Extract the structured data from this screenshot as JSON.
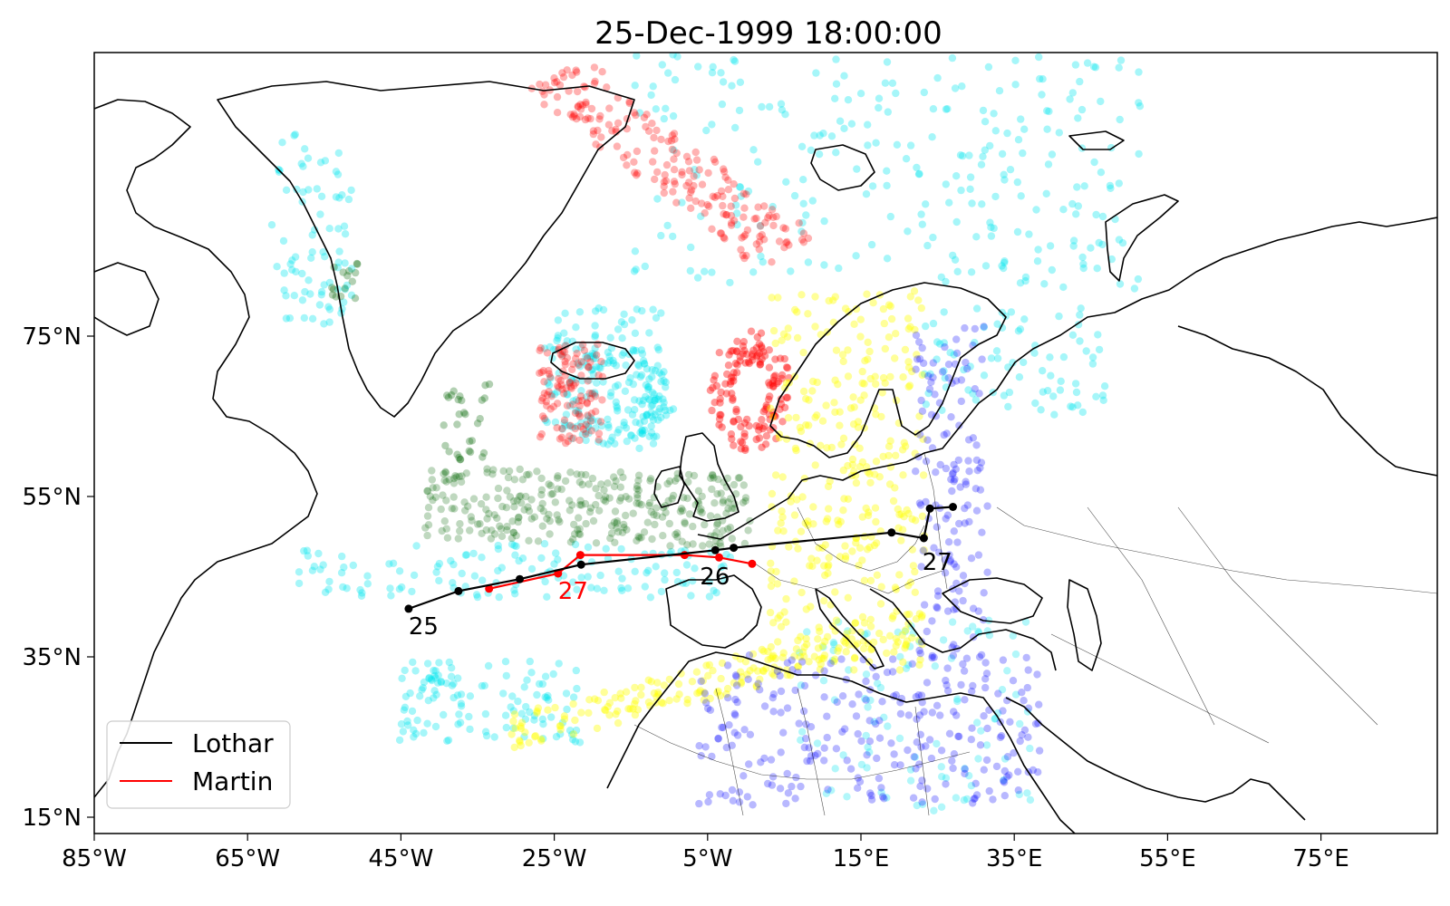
{
  "title": "25-Dec-1999 18:00:00",
  "axes": {
    "x_ticks": [
      "85°W",
      "65°W",
      "45°W",
      "25°W",
      "5°W",
      "15°E",
      "35°E",
      "55°E",
      "75°E"
    ],
    "y_ticks": [
      "75°N",
      "55°N",
      "35°N",
      "15°N"
    ]
  },
  "legend": {
    "placement": "lower-left",
    "items": [
      {
        "label": "Lothar",
        "color": "#000000"
      },
      {
        "label": "Martin",
        "color": "#ff0000"
      }
    ]
  },
  "tracks": {
    "lothar": {
      "color": "#000000",
      "points": [
        [
          -44,
          41
        ],
        [
          -37.5,
          43.2
        ],
        [
          -29.5,
          44.7
        ],
        [
          -21.5,
          46.5
        ],
        [
          -4,
          48.3
        ],
        [
          -1.6,
          48.6
        ],
        [
          19,
          50.5
        ],
        [
          23.2,
          49.8
        ],
        [
          24,
          53.5
        ],
        [
          27,
          53.7
        ]
      ],
      "labels": [
        {
          "text": "25",
          "lon": -44,
          "lat": 41
        },
        {
          "text": "26",
          "lon": -6,
          "lat": 47.2
        },
        {
          "text": "27",
          "lon": 23,
          "lat": 49
        }
      ]
    },
    "martin": {
      "color": "#ff0000",
      "points": [
        [
          -33.5,
          43.5
        ],
        [
          -24.5,
          45.4
        ],
        [
          -21.6,
          47.7
        ],
        [
          -8,
          47.7
        ],
        [
          -3.5,
          47.4
        ],
        [
          0.8,
          46.6
        ]
      ],
      "labels": [
        {
          "text": "27",
          "lon": -24.5,
          "lat": 45.4
        }
      ]
    }
  },
  "particle_colors": {
    "cyan": "#00e5ee",
    "red": "#ff0000",
    "green": "#006400",
    "yellow": "#ffff00",
    "blue": "#0000ff"
  }
}
